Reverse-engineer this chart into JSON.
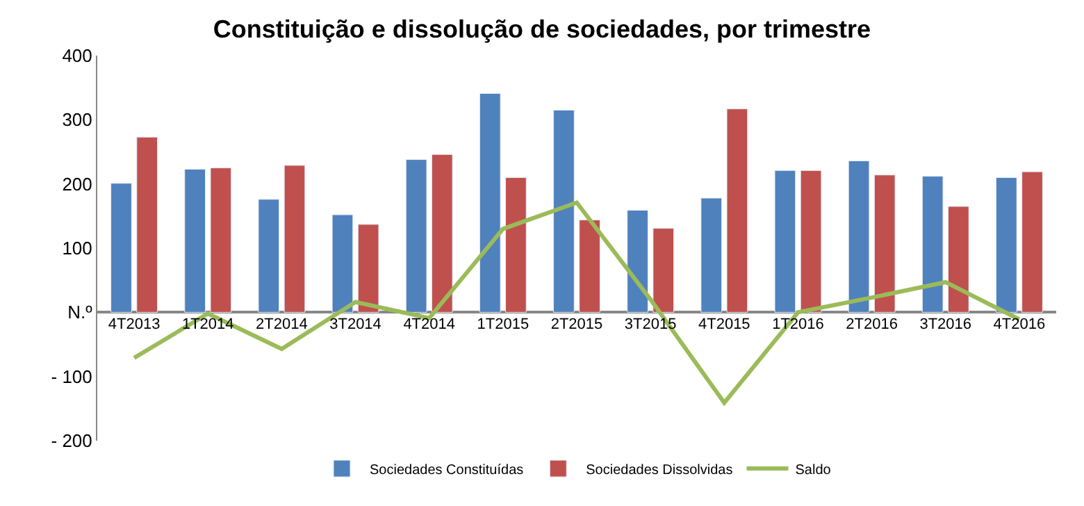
{
  "chart_data": {
    "type": "bar",
    "title": "Constituição e dissolução de sociedades, por trimestre",
    "categories": [
      "4T2013",
      "1T2014",
      "2T2014",
      "3T2014",
      "4T2014",
      "1T2015",
      "2T2015",
      "3T2015",
      "4T2015",
      "1T2016",
      "2T2016",
      "3T2016",
      "4T2016"
    ],
    "series": [
      {
        "name": "Sociedades Constituídas",
        "color": "#4f81bd",
        "values": [
          201,
          223,
          176,
          152,
          238,
          341,
          315,
          159,
          178,
          221,
          236,
          212,
          210
        ]
      },
      {
        "name": "Sociedades Dissolvidas",
        "color": "#c0504d",
        "values": [
          273,
          225,
          229,
          137,
          246,
          210,
          144,
          131,
          317,
          221,
          214,
          165,
          219
        ]
      },
      {
        "name": "Saldo",
        "type": "line",
        "color": "#9bbb59",
        "values": [
          -71,
          -2,
          -57,
          16,
          -9,
          130,
          171,
          20,
          -141,
          0,
          23,
          47,
          -11
        ]
      }
    ],
    "ylim": [
      -200,
      400
    ],
    "yticks": [
      {
        "value": -200,
        "label": "- 200"
      },
      {
        "value": -100,
        "label": "- 100"
      },
      {
        "value": 0,
        "label": "N.º"
      },
      100,
      200,
      300,
      400
    ],
    "legend": "bottom"
  }
}
